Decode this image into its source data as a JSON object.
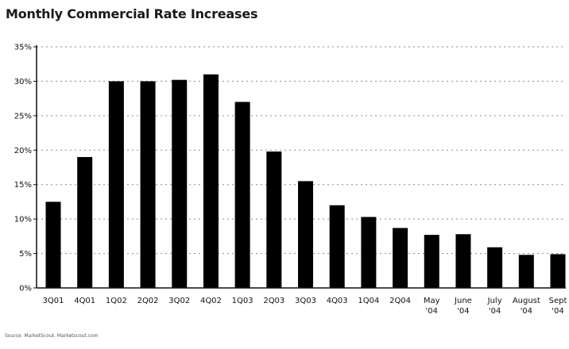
{
  "chart_data": {
    "type": "bar",
    "title": "Monthly Commercial Rate Increases",
    "xlabel": "",
    "ylabel": "",
    "ylim": [
      0,
      35
    ],
    "yticks": [
      "0%",
      "5%",
      "10%",
      "15%",
      "20%",
      "25%",
      "30%",
      "35%"
    ],
    "categories": [
      [
        "3Q01"
      ],
      [
        "4Q01"
      ],
      [
        "1Q02"
      ],
      [
        "2Q02"
      ],
      [
        "3Q02"
      ],
      [
        "4Q02"
      ],
      [
        "1Q03"
      ],
      [
        "2Q03"
      ],
      [
        "3Q03"
      ],
      [
        "4Q03"
      ],
      [
        "1Q04"
      ],
      [
        "2Q04"
      ],
      [
        "May",
        "'04"
      ],
      [
        "June",
        "'04"
      ],
      [
        "July",
        "'04"
      ],
      [
        "August",
        "'04"
      ],
      [
        "Sept",
        "'04"
      ]
    ],
    "values": [
      12.5,
      19,
      30,
      30,
      30.2,
      31,
      27,
      19.8,
      15.5,
      12,
      10.3,
      8.7,
      7.7,
      7.8,
      5.9,
      4.8,
      4.9
    ],
    "bar_color": "#000000",
    "grid": "dotted horizontal",
    "legend": "none"
  },
  "source_note": "Source: MarketScout. Marketscout.com"
}
